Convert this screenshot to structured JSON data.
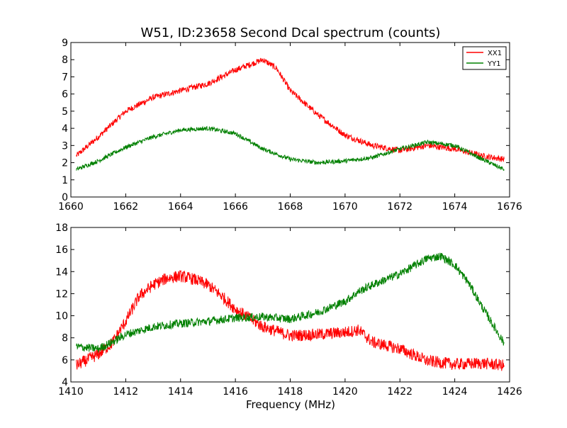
{
  "figure": {
    "title": "W51, ID:23658 Second Dcal spectrum (counts)"
  },
  "colors": {
    "xx1": "#ff0000",
    "yy1": "#008000",
    "axes": "#000000",
    "background": "#ffffff"
  },
  "chart_data": [
    {
      "type": "line",
      "title": "W51, ID:23658 Second Dcal spectrum (counts)",
      "xlabel": "",
      "ylabel": "",
      "xlim": [
        1660,
        1676
      ],
      "ylim": [
        0,
        9
      ],
      "xticks": [
        "1660",
        "1662",
        "1664",
        "1666",
        "1668",
        "1670",
        "1672",
        "1674",
        "1676"
      ],
      "yticks": [
        "0",
        "1",
        "2",
        "3",
        "4",
        "5",
        "6",
        "7",
        "8",
        "9"
      ],
      "legend": {
        "position": "top-right",
        "entries": [
          "XX1",
          "YY1"
        ]
      },
      "grid": false,
      "series": [
        {
          "name": "XX1",
          "color": "#ff0000",
          "x": [
            1660.2,
            1661,
            1662,
            1663,
            1664,
            1665,
            1666,
            1667,
            1667.5,
            1668,
            1669,
            1670,
            1671,
            1672,
            1673,
            1674,
            1675,
            1675.8
          ],
          "y": [
            2.4,
            3.5,
            5.0,
            5.8,
            6.2,
            6.6,
            7.4,
            8.0,
            7.5,
            6.2,
            4.8,
            3.6,
            3.0,
            2.7,
            3.0,
            2.8,
            2.4,
            2.2
          ]
        },
        {
          "name": "YY1",
          "color": "#008000",
          "x": [
            1660.2,
            1661,
            1662,
            1663,
            1664,
            1665,
            1666,
            1667,
            1668,
            1669,
            1670,
            1671,
            1672,
            1673,
            1674,
            1675,
            1675.8
          ],
          "y": [
            1.6,
            2.1,
            2.9,
            3.5,
            3.9,
            4.0,
            3.7,
            2.8,
            2.2,
            2.0,
            2.1,
            2.3,
            2.8,
            3.2,
            3.0,
            2.2,
            1.6
          ]
        }
      ]
    },
    {
      "type": "line",
      "title": "",
      "xlabel": "Frequency (MHz)",
      "ylabel": "",
      "xlim": [
        1410,
        1426
      ],
      "ylim": [
        4,
        18
      ],
      "xticks": [
        "1410",
        "1412",
        "1414",
        "1416",
        "1418",
        "1420",
        "1422",
        "1424",
        "1426"
      ],
      "yticks": [
        "4",
        "6",
        "8",
        "10",
        "12",
        "14",
        "16",
        "18"
      ],
      "grid": false,
      "series": [
        {
          "color": "#ff0000",
          "x": [
            1410.2,
            1411,
            1411.5,
            1412,
            1412.5,
            1413,
            1413.5,
            1414,
            1414.5,
            1415,
            1415.5,
            1416,
            1416.5,
            1417,
            1418,
            1419,
            1420,
            1420.5,
            1421,
            1422,
            1423,
            1424,
            1425,
            1425.8
          ],
          "y": [
            5.5,
            6.5,
            7.5,
            9.5,
            11.8,
            12.8,
            13.4,
            13.6,
            13.3,
            12.8,
            11.8,
            10.6,
            9.8,
            9.0,
            8.2,
            8.3,
            8.5,
            8.7,
            7.6,
            7.0,
            5.9,
            5.6,
            5.7,
            5.5
          ]
        },
        {
          "color": "#008000",
          "x": [
            1410.2,
            1411,
            1411.5,
            1412,
            1413,
            1414,
            1415,
            1416,
            1417,
            1418,
            1419,
            1420,
            1420.5,
            1421,
            1422,
            1422.5,
            1423,
            1423.5,
            1424,
            1424.5,
            1425,
            1425.8
          ],
          "y": [
            7.2,
            7.0,
            7.6,
            8.3,
            9.0,
            9.3,
            9.5,
            9.8,
            9.9,
            9.7,
            10.3,
            11.3,
            12.2,
            12.8,
            13.8,
            14.5,
            15.2,
            15.4,
            14.6,
            13.0,
            10.8,
            7.5
          ]
        }
      ]
    }
  ]
}
